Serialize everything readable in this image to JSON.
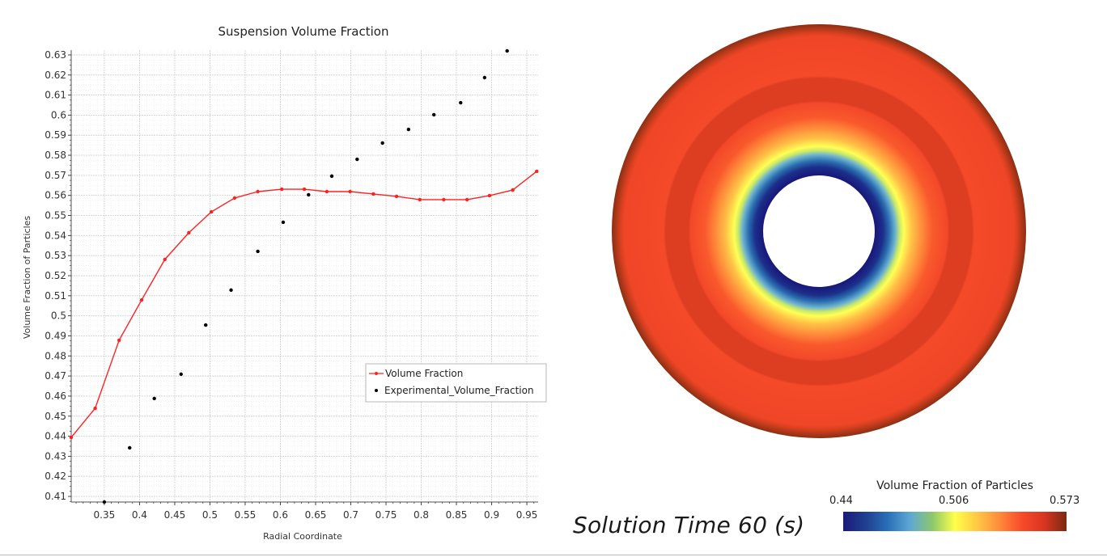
{
  "chart_data": {
    "type": "line",
    "title": "Suspension Volume Fraction",
    "xlabel": "Radial Coordinate",
    "ylabel": "Volume Fraction of Particles",
    "xlim": [
      0.303,
      0.966
    ],
    "ylim": [
      0.4072,
      0.6324
    ],
    "x_ticks": [
      0.35,
      0.4,
      0.45,
      0.5,
      0.55,
      0.6,
      0.65,
      0.7,
      0.75,
      0.8,
      0.85,
      0.9,
      0.95
    ],
    "x_tick_labels": [
      "0.35",
      "0.4",
      "0.45",
      "0.5",
      "0.55",
      "0.6",
      "0.65",
      "0.7",
      "0.75",
      "0.8",
      "0.85",
      "0.9",
      "0.95"
    ],
    "y_ticks": [
      0.41,
      0.42,
      0.43,
      0.44,
      0.45,
      0.46,
      0.47,
      0.48,
      0.49,
      0.5,
      0.51,
      0.52,
      0.53,
      0.54,
      0.55,
      0.56,
      0.57,
      0.58,
      0.59,
      0.6,
      0.61,
      0.62,
      0.63
    ],
    "y_tick_labels": [
      "0.41",
      "0.42",
      "0.43",
      "0.44",
      "0.45",
      "0.46",
      "0.47",
      "0.48",
      "0.49",
      "0.5",
      "0.51",
      "0.52",
      "0.53",
      "0.54",
      "0.55",
      "0.56",
      "0.57",
      "0.58",
      "0.59",
      "0.6",
      "0.61",
      "0.62",
      "0.63"
    ],
    "grid": true,
    "legend_position": "center-right",
    "series": [
      {
        "name": "Volume Fraction",
        "style": "line-with-markers",
        "color": "#ff2020",
        "x": [
          0.303,
          0.337,
          0.371,
          0.403,
          0.436,
          0.47,
          0.502,
          0.535,
          0.568,
          0.602,
          0.634,
          0.666,
          0.699,
          0.732,
          0.765,
          0.798,
          0.832,
          0.865,
          0.897,
          0.93,
          0.964
        ],
        "y": [
          0.4394,
          0.4539,
          0.4878,
          0.5079,
          0.5281,
          0.5414,
          0.5518,
          0.5587,
          0.5619,
          0.5631,
          0.5631,
          0.5619,
          0.5619,
          0.5607,
          0.5595,
          0.5579,
          0.5579,
          0.5579,
          0.5599,
          0.5627,
          0.572
        ]
      },
      {
        "name": "Experimental_Volume_Fraction",
        "style": "scatter",
        "color": "#000000",
        "x": [
          0.35,
          0.386,
          0.421,
          0.459,
          0.494,
          0.53,
          0.568,
          0.604,
          0.64,
          0.673,
          0.709,
          0.745,
          0.782,
          0.818,
          0.856,
          0.89,
          0.922
        ],
        "y": [
          0.4072,
          0.4342,
          0.4588,
          0.4709,
          0.4954,
          0.5128,
          0.5321,
          0.5466,
          0.5603,
          0.5696,
          0.578,
          0.5861,
          0.5929,
          0.6002,
          0.6062,
          0.6187,
          0.632
        ]
      }
    ]
  },
  "contour": {
    "scalar_name": "Volume Fraction of Particles",
    "min_label": "0.44",
    "mid_label": "0.506",
    "max_label": "0.573",
    "min": 0.44,
    "max": 0.573,
    "colormap": [
      "#1b1a7a",
      "#1f3f8f",
      "#2a6fb8",
      "#5ea8d4",
      "#8dc86a",
      "#ffff4a",
      "#ffc845",
      "#ff8a3c",
      "#f84a2a",
      "#d83520",
      "#7a2a12"
    ],
    "solution_time_label": "Solution Time 60 (s)"
  }
}
